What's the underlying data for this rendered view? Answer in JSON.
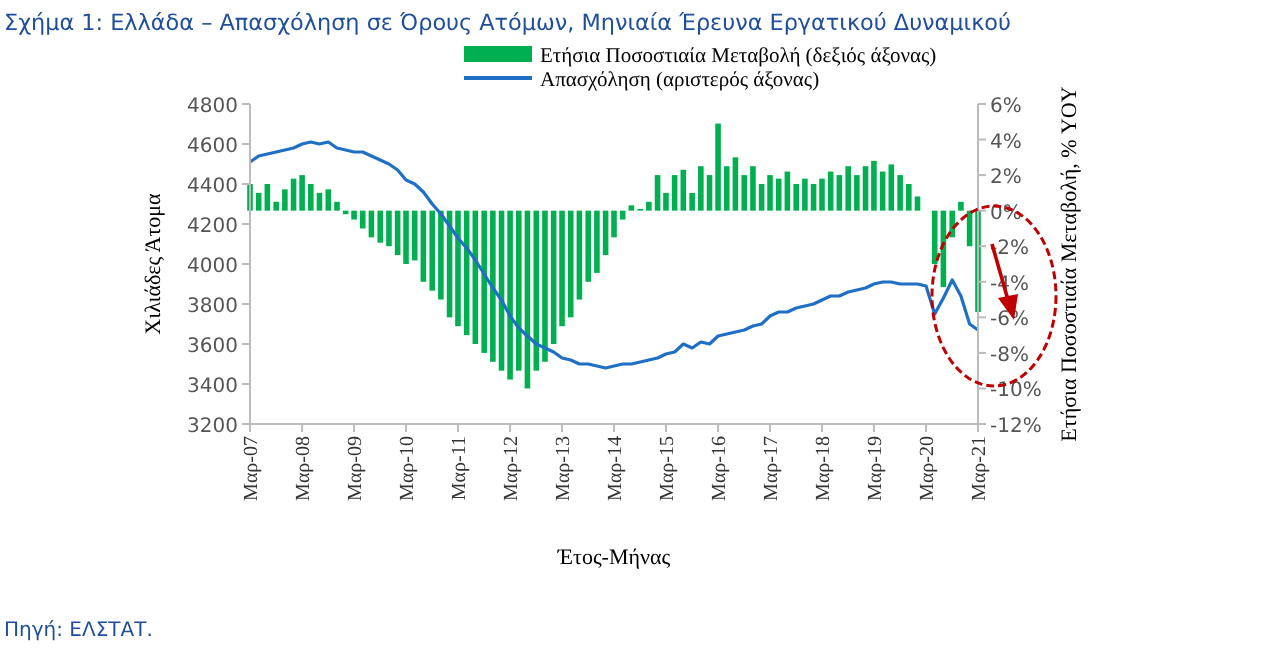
{
  "chart_data": {
    "type": "bar",
    "title": "Σχήμα 1: Ελλάδα – Απασχόληση σε Όρους Ατόμων, Μηνιαία Έρευνα Εργατικού Δυναμικού",
    "xlabel": "Έτος-Μήνας",
    "ylabel": "Χιλιάδες Άτομα",
    "y2label": "Ετήσια Ποσοστιαία Μεταβολή, % YOY",
    "annotations": [
      "Πηγή: ΕΛΣΤΑΤ."
    ],
    "x": [
      "2007-03",
      "2007-05",
      "2007-07",
      "2007-09",
      "2007-11",
      "2008-01",
      "2008-03",
      "2008-05",
      "2008-07",
      "2008-09",
      "2008-11",
      "2009-01",
      "2009-03",
      "2009-05",
      "2009-07",
      "2009-09",
      "2009-11",
      "2010-01",
      "2010-03",
      "2010-05",
      "2010-07",
      "2010-09",
      "2010-11",
      "2011-01",
      "2011-03",
      "2011-05",
      "2011-07",
      "2011-09",
      "2011-11",
      "2012-01",
      "2012-03",
      "2012-05",
      "2012-07",
      "2012-09",
      "2012-11",
      "2013-01",
      "2013-03",
      "2013-05",
      "2013-07",
      "2013-09",
      "2013-11",
      "2014-01",
      "2014-03",
      "2014-05",
      "2014-07",
      "2014-09",
      "2014-11",
      "2015-01",
      "2015-03",
      "2015-05",
      "2015-07",
      "2015-09",
      "2015-11",
      "2016-01",
      "2016-03",
      "2016-05",
      "2016-07",
      "2016-09",
      "2016-11",
      "2017-01",
      "2017-03",
      "2017-05",
      "2017-07",
      "2017-09",
      "2017-11",
      "2018-01",
      "2018-03",
      "2018-05",
      "2018-07",
      "2018-09",
      "2018-11",
      "2019-01",
      "2019-03",
      "2019-05",
      "2019-07",
      "2019-09",
      "2019-11",
      "2020-01",
      "2020-03",
      "2020-05",
      "2020-07",
      "2020-09",
      "2020-11",
      "2021-01",
      "2021-03"
    ],
    "series": [
      {
        "name": "Ετήσια Ποσοστιαία Μεταβολή (δεξιός άξονας)",
        "axis": "y2",
        "color": "#00b050",
        "values": [
          1.5,
          1.0,
          1.5,
          0.5,
          1.2,
          1.8,
          2.0,
          1.5,
          1.0,
          1.2,
          0.5,
          -0.2,
          -0.5,
          -1.0,
          -1.5,
          -1.8,
          -2.0,
          -2.5,
          -3.0,
          -2.8,
          -4.0,
          -4.5,
          -5.0,
          -6.0,
          -6.5,
          -7.0,
          -7.5,
          -8.0,
          -8.5,
          -9.0,
          -9.5,
          -9.0,
          -10.0,
          -9.0,
          -8.5,
          -7.5,
          -6.5,
          -6.0,
          -5.0,
          -4.0,
          -3.5,
          -2.5,
          -1.5,
          -0.5,
          0.3,
          0.1,
          0.5,
          2.0,
          1.0,
          2.0,
          2.3,
          1.0,
          2.5,
          2.0,
          4.9,
          2.5,
          3.0,
          2.0,
          2.5,
          1.5,
          2.0,
          1.8,
          2.2,
          1.5,
          1.8,
          1.5,
          1.8,
          2.2,
          2.0,
          2.5,
          2.0,
          2.5,
          2.8,
          2.2,
          2.6,
          2.0,
          1.5,
          0.8,
          0.0,
          -3.0,
          -4.3,
          -1.5,
          0.5,
          -2.0,
          -5.7
        ]
      },
      {
        "name": "Απασχόληση (αριστερός άξονας)",
        "type": "line",
        "axis": "y",
        "color": "#1f6fc5",
        "values": [
          4510,
          4540,
          4550,
          4560,
          4570,
          4580,
          4600,
          4610,
          4600,
          4610,
          4580,
          4570,
          4560,
          4560,
          4540,
          4520,
          4500,
          4470,
          4420,
          4400,
          4360,
          4300,
          4250,
          4190,
          4130,
          4080,
          4020,
          3950,
          3880,
          3820,
          3740,
          3680,
          3640,
          3600,
          3580,
          3560,
          3530,
          3520,
          3500,
          3500,
          3490,
          3480,
          3490,
          3500,
          3500,
          3510,
          3520,
          3530,
          3550,
          3560,
          3600,
          3580,
          3610,
          3600,
          3640,
          3650,
          3660,
          3670,
          3690,
          3700,
          3740,
          3760,
          3760,
          3780,
          3790,
          3800,
          3820,
          3840,
          3840,
          3860,
          3870,
          3880,
          3900,
          3910,
          3910,
          3900,
          3900,
          3900,
          3890,
          3750,
          3830,
          3920,
          3840,
          3700,
          3670
        ]
      }
    ],
    "xlim": [
      "2007-03",
      "2021-03"
    ],
    "xticks": [
      {
        "value": "2007-03",
        "label": "Μαρ-07"
      },
      {
        "value": "2008-03",
        "label": "Μαρ-08"
      },
      {
        "value": "2009-03",
        "label": "Μαρ-09"
      },
      {
        "value": "2010-03",
        "label": "Μαρ-10"
      },
      {
        "value": "2011-03",
        "label": "Μαρ-11"
      },
      {
        "value": "2012-03",
        "label": "Μαρ-12"
      },
      {
        "value": "2013-03",
        "label": "Μαρ-13"
      },
      {
        "value": "2014-03",
        "label": "Μαρ-14"
      },
      {
        "value": "2015-03",
        "label": "Μαρ-15"
      },
      {
        "value": "2016-03",
        "label": "Μαρ-16"
      },
      {
        "value": "2017-03",
        "label": "Μαρ-17"
      },
      {
        "value": "2018-03",
        "label": "Μαρ-18"
      },
      {
        "value": "2019-03",
        "label": "Μαρ-19"
      },
      {
        "value": "2020-03",
        "label": "Μαρ-20"
      },
      {
        "value": "2021-03",
        "label": "Μαρ-21"
      }
    ],
    "ylim": [
      3200,
      4800
    ],
    "yticks": [
      3200,
      3400,
      3600,
      3800,
      4000,
      4200,
      4400,
      4600,
      4800
    ],
    "y2lim": [
      -12,
      6
    ],
    "y2ticks": [
      {
        "value": -12,
        "label": "-12%"
      },
      {
        "value": -10,
        "label": "-10%"
      },
      {
        "value": -8,
        "label": "-8%"
      },
      {
        "value": -6,
        "label": "-6%"
      },
      {
        "value": -4,
        "label": "-4%"
      },
      {
        "value": -2,
        "label": "-2%"
      },
      {
        "value": 0,
        "label": "0%"
      },
      {
        "value": 2,
        "label": "2%"
      },
      {
        "value": 4,
        "label": "4%"
      },
      {
        "value": 6,
        "label": "6%"
      }
    ],
    "legend": "top",
    "grid": false
  }
}
